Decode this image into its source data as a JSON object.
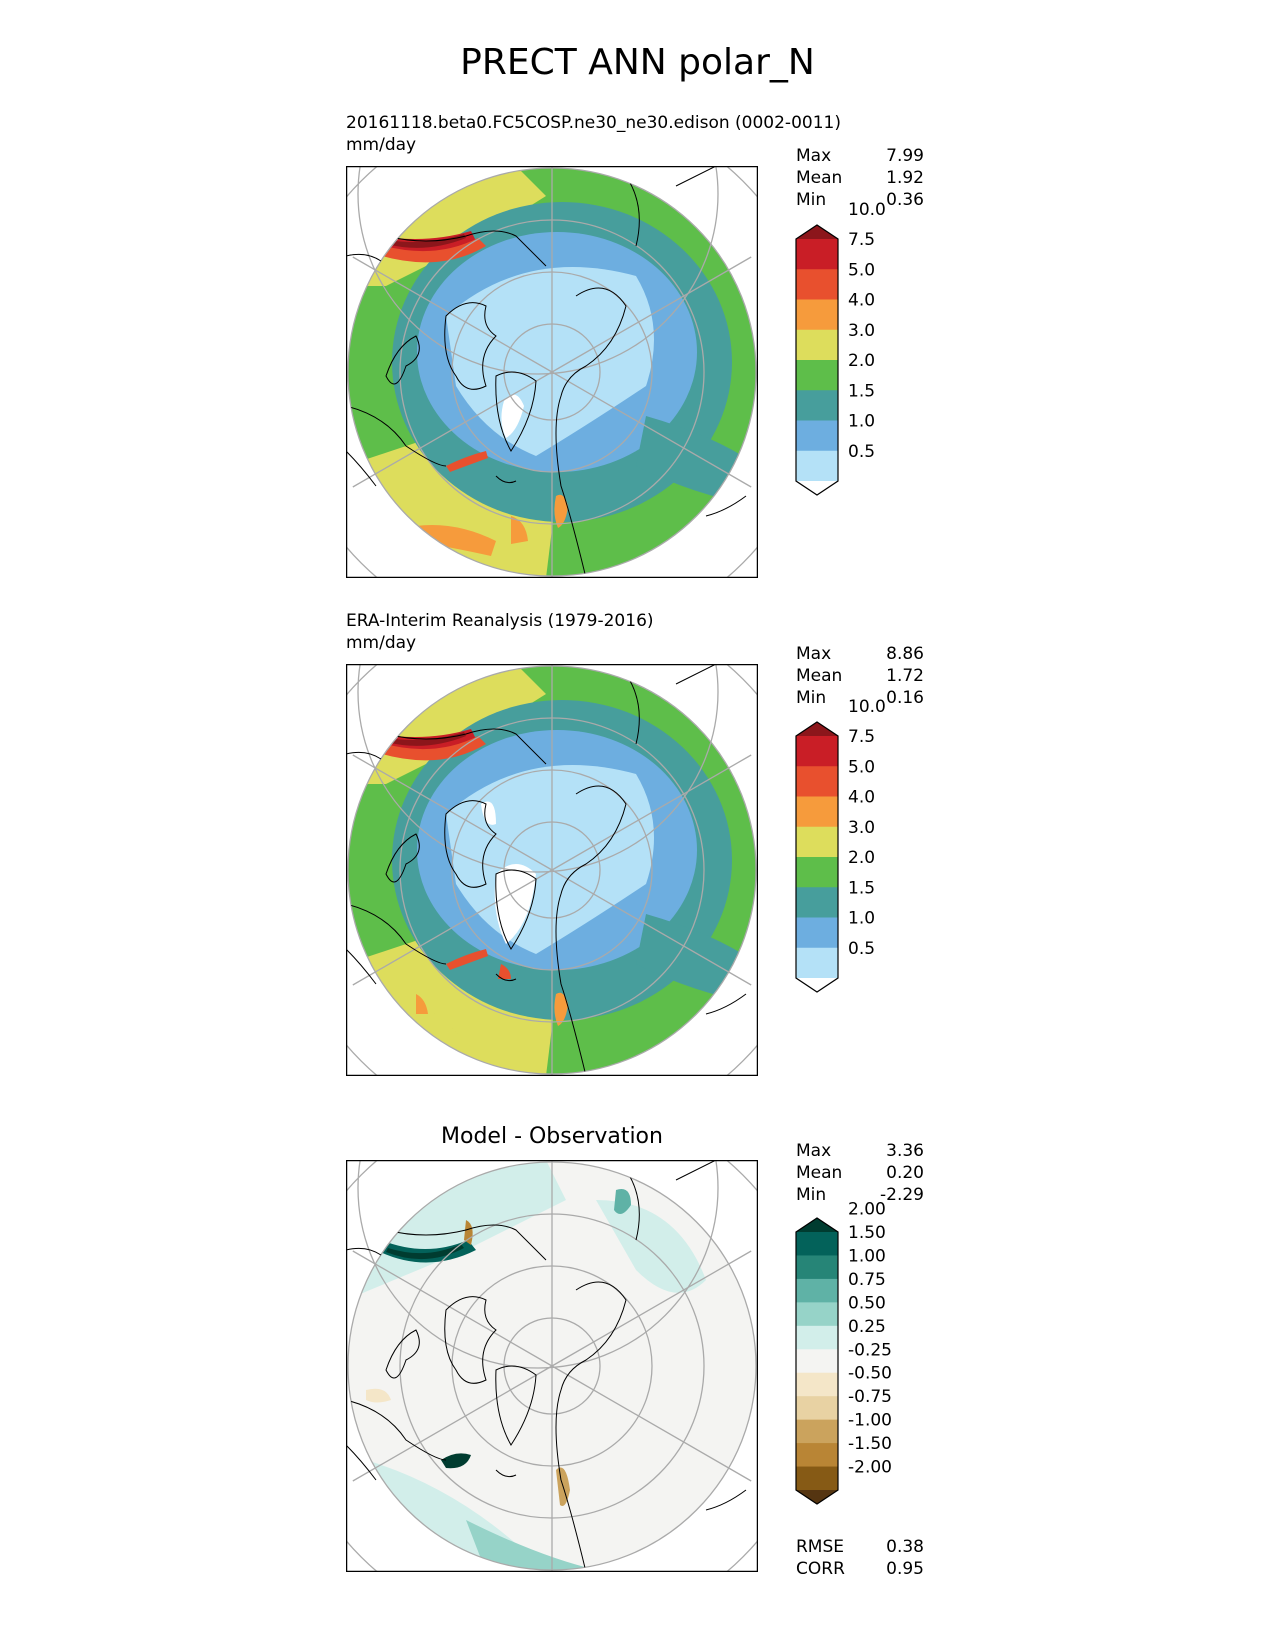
{
  "title": "PRECT ANN polar_N",
  "panels": [
    {
      "id": "model",
      "title_line1": "20161118.beta0.FC5COSP.ne30_ne30.edison (0002-0011)",
      "title_line2": "mm/day",
      "stats": [
        {
          "label": "Max",
          "value": "7.99"
        },
        {
          "label": "Mean",
          "value": "1.92"
        },
        {
          "label": "Min",
          "value": "0.36"
        }
      ]
    },
    {
      "id": "obs",
      "title_line1": "ERA-Interim Reanalysis (1979-2016)",
      "title_line2": "mm/day",
      "stats": [
        {
          "label": "Max",
          "value": "8.86"
        },
        {
          "label": "Mean",
          "value": "1.72"
        },
        {
          "label": "Min",
          "value": "0.16"
        }
      ]
    },
    {
      "id": "diff",
      "title": "Model - Observation",
      "stats": [
        {
          "label": "Max",
          "value": "3.36"
        },
        {
          "label": "Mean",
          "value": "0.20"
        },
        {
          "label": "Min",
          "value": "-2.29"
        }
      ],
      "metrics": [
        {
          "label": "RMSE",
          "value": "0.38"
        },
        {
          "label": "CORR",
          "value": "0.95"
        }
      ]
    }
  ],
  "chart_data": [
    {
      "type": "heatmap",
      "projection": "north polar stereographic",
      "title": "20161118.beta0.FC5COSP.ne30_ne30.edison (0002-0011)",
      "units": "mm/day",
      "contour_levels": [
        0.5,
        1.0,
        1.5,
        2.0,
        3.0,
        4.0,
        5.0,
        7.5,
        10.0
      ],
      "colors": [
        "#ffffff",
        "#b4e1f7",
        "#6daee0",
        "#479e9c",
        "#5ebe4a",
        "#dddd5c",
        "#f69b3c",
        "#e8502e",
        "#c91e26",
        "#8c161b"
      ],
      "stats": {
        "max": 7.99,
        "mean": 1.92,
        "min": 0.36
      }
    },
    {
      "type": "heatmap",
      "projection": "north polar stereographic",
      "title": "ERA-Interim Reanalysis (1979-2016)",
      "units": "mm/day",
      "contour_levels": [
        0.5,
        1.0,
        1.5,
        2.0,
        3.0,
        4.0,
        5.0,
        7.5,
        10.0
      ],
      "colors": [
        "#ffffff",
        "#b4e1f7",
        "#6daee0",
        "#479e9c",
        "#5ebe4a",
        "#dddd5c",
        "#f69b3c",
        "#e8502e",
        "#c91e26",
        "#8c161b"
      ],
      "stats": {
        "max": 8.86,
        "mean": 1.72,
        "min": 0.16
      }
    },
    {
      "type": "heatmap",
      "projection": "north polar stereographic",
      "title": "Model - Observation",
      "contour_levels": [
        -2.0,
        -1.5,
        -1.0,
        -0.75,
        -0.5,
        -0.25,
        0.25,
        0.5,
        0.75,
        1.0,
        1.5,
        2.0
      ],
      "colors": [
        "#553511",
        "#865a15",
        "#b98535",
        "#cba35d",
        "#e8d2a3",
        "#f4e6c8",
        "#f4f4f2",
        "#d2eeea",
        "#96d3c8",
        "#5fb2a6",
        "#268577",
        "#03625a",
        "#003c30"
      ],
      "stats": {
        "max": 3.36,
        "mean": 0.2,
        "min": -2.29,
        "rmse": 0.38,
        "corr": 0.95
      }
    }
  ],
  "colorbars": {
    "precip": {
      "colors": [
        "#ffffff",
        "#b4e1f7",
        "#6daee0",
        "#479e9c",
        "#5ebe4a",
        "#dddd5c",
        "#f69b3c",
        "#e8502e",
        "#c91e26",
        "#8c161b"
      ],
      "labels": [
        "0.5",
        "1.0",
        "1.5",
        "2.0",
        "3.0",
        "4.0",
        "5.0",
        "7.5",
        "10.0"
      ]
    },
    "diff": {
      "colors": [
        "#553511",
        "#865a15",
        "#b98535",
        "#cba35d",
        "#e8d2a3",
        "#f4e6c8",
        "#f4f4f2",
        "#d2eeea",
        "#96d3c8",
        "#5fb2a6",
        "#268577",
        "#03625a",
        "#003c30"
      ],
      "labels": [
        "-2.00",
        "-1.50",
        "-1.00",
        "-0.75",
        "-0.50",
        "-0.25",
        "0.25",
        "0.50",
        "0.75",
        "1.00",
        "1.50",
        "2.00"
      ]
    }
  }
}
